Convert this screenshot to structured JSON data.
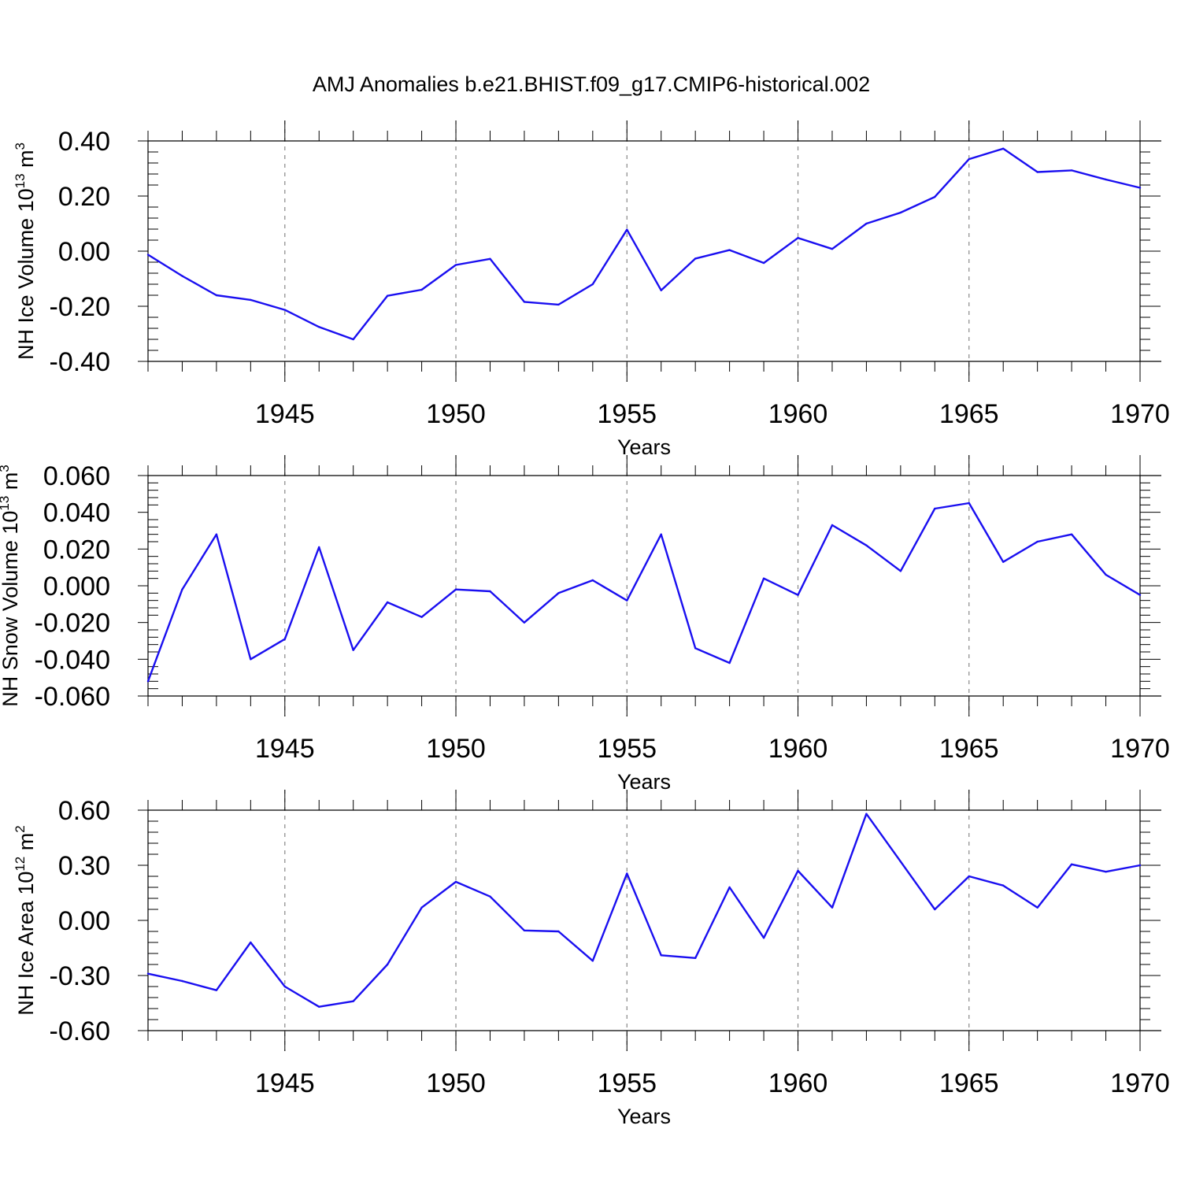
{
  "title": "AMJ Anomalies b.e21.BHIST.f09_g17.CMIP6-historical.002",
  "colors": {
    "line": "#1a0ff0",
    "frame": "#000000",
    "grid": "#888888"
  },
  "chart_data": [
    {
      "type": "line",
      "ylabel": "NH Ice Volume 10",
      "ylabel_exp": "13",
      "ylabel_unit": " m",
      "ylabel_unit_exp": "3",
      "xlabel": "Years",
      "xlim": [
        1941,
        1970
      ],
      "ylim": [
        -0.4,
        0.4
      ],
      "yticks": [
        -0.4,
        -0.2,
        0.0,
        0.2,
        0.4
      ],
      "ytick_labels": [
        "-0.40",
        "-0.20",
        "0.00",
        "0.20",
        "0.40"
      ],
      "xticks": [
        1945,
        1950,
        1955,
        1960,
        1965,
        1970
      ],
      "xtick_labels": [
        "1945",
        "1950",
        "1955",
        "1960",
        "1965",
        "1970"
      ],
      "grid": "dashed vertical at 1945, 1950, 1955, 1960, 1965",
      "x": [
        1941,
        1942,
        1943,
        1944,
        1945,
        1946,
        1947,
        1948,
        1949,
        1950,
        1951,
        1952,
        1953,
        1954,
        1955,
        1956,
        1957,
        1958,
        1959,
        1960,
        1961,
        1962,
        1963,
        1964,
        1965,
        1966,
        1967,
        1968,
        1969,
        1970
      ],
      "series": [
        {
          "name": "NH Ice Volume",
          "values": [
            -0.013,
            -0.09,
            -0.16,
            -0.177,
            -0.213,
            -0.275,
            -0.32,
            -0.162,
            -0.14,
            -0.05,
            -0.028,
            -0.184,
            -0.194,
            -0.12,
            0.078,
            -0.142,
            -0.027,
            0.004,
            -0.043,
            0.048,
            0.008,
            0.1,
            0.14,
            0.197,
            0.334,
            0.372,
            0.287,
            0.293,
            0.26,
            0.23
          ]
        }
      ]
    },
    {
      "type": "line",
      "ylabel": "NH Snow Volume 10",
      "ylabel_exp": "13",
      "ylabel_unit": " m",
      "ylabel_unit_exp": "3",
      "xlabel": "Years",
      "xlim": [
        1941,
        1970
      ],
      "ylim": [
        -0.06,
        0.06
      ],
      "yticks": [
        -0.06,
        -0.04,
        -0.02,
        0.0,
        0.02,
        0.04,
        0.06
      ],
      "ytick_labels": [
        "-0.060",
        "-0.040",
        "-0.020",
        "0.000",
        "0.020",
        "0.040",
        "0.060"
      ],
      "xticks": [
        1945,
        1950,
        1955,
        1960,
        1965,
        1970
      ],
      "xtick_labels": [
        "1945",
        "1950",
        "1955",
        "1960",
        "1965",
        "1970"
      ],
      "grid": "dashed vertical at 1945, 1950, 1955, 1960, 1965",
      "x": [
        1941,
        1942,
        1943,
        1944,
        1945,
        1946,
        1947,
        1948,
        1949,
        1950,
        1951,
        1952,
        1953,
        1954,
        1955,
        1956,
        1957,
        1958,
        1959,
        1960,
        1961,
        1962,
        1963,
        1964,
        1965,
        1966,
        1967,
        1968,
        1969,
        1970
      ],
      "series": [
        {
          "name": "NH Snow Volume",
          "values": [
            -0.052,
            -0.002,
            0.028,
            -0.04,
            -0.029,
            0.021,
            -0.035,
            -0.009,
            -0.017,
            -0.002,
            -0.003,
            -0.02,
            -0.004,
            0.003,
            -0.008,
            0.028,
            -0.034,
            -0.042,
            0.004,
            -0.005,
            0.033,
            0.022,
            0.008,
            0.042,
            0.045,
            0.013,
            0.024,
            0.028,
            0.006,
            -0.005
          ]
        }
      ]
    },
    {
      "type": "line",
      "ylabel": "NH Ice Area 10",
      "ylabel_exp": "12",
      "ylabel_unit": " m",
      "ylabel_unit_exp": "2",
      "xlabel": "Years",
      "xlim": [
        1941,
        1970
      ],
      "ylim": [
        -0.6,
        0.6
      ],
      "yticks": [
        -0.6,
        -0.3,
        0.0,
        0.3,
        0.6
      ],
      "ytick_labels": [
        "-0.60",
        "-0.30",
        "0.00",
        "0.30",
        "0.60"
      ],
      "xticks": [
        1945,
        1950,
        1955,
        1960,
        1965,
        1970
      ],
      "xtick_labels": [
        "1945",
        "1950",
        "1955",
        "1960",
        "1965",
        "1970"
      ],
      "grid": "dashed vertical at 1945, 1950, 1955, 1960, 1965",
      "x": [
        1941,
        1942,
        1943,
        1944,
        1945,
        1946,
        1947,
        1948,
        1949,
        1950,
        1951,
        1952,
        1953,
        1954,
        1955,
        1956,
        1957,
        1958,
        1959,
        1960,
        1961,
        1962,
        1963,
        1964,
        1965,
        1966,
        1967,
        1968,
        1969,
        1970
      ],
      "series": [
        {
          "name": "NH Ice Area",
          "values": [
            -0.29,
            -0.33,
            -0.38,
            -0.12,
            -0.36,
            -0.47,
            -0.44,
            -0.24,
            0.07,
            0.21,
            0.13,
            -0.055,
            -0.06,
            -0.22,
            0.255,
            -0.19,
            -0.205,
            0.18,
            -0.095,
            0.27,
            0.07,
            0.58,
            0.32,
            0.06,
            0.24,
            0.19,
            0.07,
            0.305,
            0.265,
            0.3
          ]
        }
      ]
    }
  ]
}
